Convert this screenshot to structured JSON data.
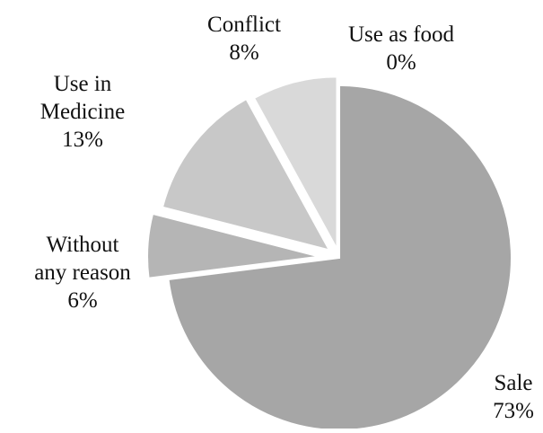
{
  "chart_data": {
    "type": "pie",
    "title": "",
    "categories": [
      "Sale",
      "Without any reason",
      "Use in Medicine",
      "Conflict",
      "Use as food"
    ],
    "values": [
      73,
      6,
      13,
      8,
      0
    ],
    "value_labels": [
      "73%",
      "6%",
      "13%",
      "8%",
      "0%"
    ],
    "label_lines": [
      [
        "Sale",
        "73%"
      ],
      [
        "Without",
        "any reason",
        "6%"
      ],
      [
        "Use in",
        "Medicine",
        "13%"
      ],
      [
        "Conflict",
        "8%"
      ],
      [
        "Use as food",
        "0%"
      ]
    ],
    "colors": [
      "#a6a6a6",
      "#b5b5b5",
      "#c8c8c8",
      "#d9d9d9",
      "#e6e6e6"
    ],
    "exploded": true,
    "start_angle_deg": 0,
    "direction": "clockwise",
    "legend": "none"
  }
}
